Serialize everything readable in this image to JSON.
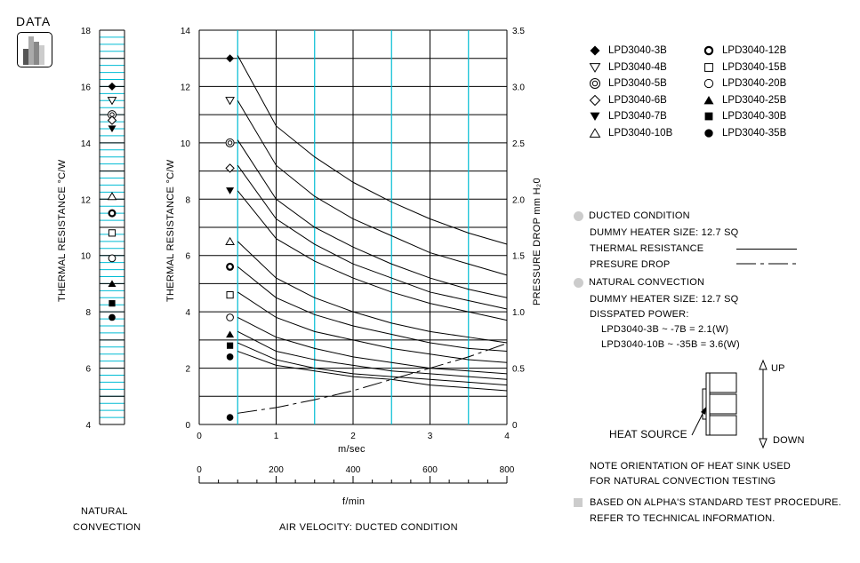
{
  "header": {
    "label": "DATA"
  },
  "natural_chart": {
    "ylabel": "THERMAL RESISTANCE  °C/W",
    "caption_line1": "NATURAL",
    "caption_line2": "CONVECTION",
    "ylim": [
      4,
      18
    ],
    "yticks": [
      "4",
      "6",
      "8",
      "10",
      "12",
      "14",
      "16",
      "18"
    ]
  },
  "chart_data": {
    "type": "line",
    "xlabel": "m/sec",
    "xlabel2": "f/min",
    "ylabel": "THERMAL RESISTANCE  °C/W",
    "ylabel_right": "PRESSURE  DROP   mm H₂0",
    "caption": "AIR VELOCITY:  DUCTED CONDITION",
    "xlim": [
      0,
      4
    ],
    "ylim": [
      0,
      14
    ],
    "ylim_right": [
      0,
      3.5
    ],
    "xticks": [
      "0",
      "1",
      "2",
      "3",
      "4"
    ],
    "xticks2": [
      "0",
      "200",
      "400",
      "600",
      "800"
    ],
    "yticks": [
      "0",
      "2",
      "4",
      "6",
      "8",
      "10",
      "12",
      "14"
    ],
    "yticks_right": [
      "0",
      "0.5",
      "1.0",
      "1.5",
      "2.0",
      "2.5",
      "3.0",
      "3.5"
    ],
    "x": [
      0.5,
      1,
      1.5,
      2,
      2.5,
      3,
      3.5,
      4
    ],
    "series": [
      {
        "name": "LPD3040-3B",
        "marker": "diamond-filled",
        "natural": 16.0,
        "start": 13.0,
        "values": [
          13.1,
          10.6,
          9.5,
          8.6,
          7.9,
          7.3,
          6.8,
          6.4
        ]
      },
      {
        "name": "LPD3040-4B",
        "marker": "triangle-down-open",
        "natural": 15.5,
        "start": 11.5,
        "values": [
          11.5,
          9.2,
          8.1,
          7.3,
          6.7,
          6.1,
          5.7,
          5.3
        ]
      },
      {
        "name": "LPD3040-5B",
        "marker": "double-circle",
        "natural": 15.0,
        "start": 10.0,
        "values": [
          10.1,
          8.0,
          7.0,
          6.3,
          5.7,
          5.2,
          4.8,
          4.5
        ]
      },
      {
        "name": "LPD3040-6B",
        "marker": "diamond-open",
        "natural": 14.8,
        "start": 9.1,
        "values": [
          9.2,
          7.3,
          6.4,
          5.7,
          5.2,
          4.7,
          4.4,
          4.1
        ]
      },
      {
        "name": "LPD3040-7B",
        "marker": "triangle-down-filled",
        "natural": 14.5,
        "start": 8.3,
        "values": [
          8.3,
          6.6,
          5.8,
          5.2,
          4.7,
          4.3,
          4.0,
          3.7
        ]
      },
      {
        "name": "LPD3040-10B",
        "marker": "triangle-up-open",
        "natural": 12.1,
        "start": 6.5,
        "values": [
          6.5,
          5.2,
          4.5,
          4.0,
          3.6,
          3.3,
          3.1,
          2.9
        ]
      },
      {
        "name": "LPD3040-12B",
        "marker": "bold-circle",
        "natural": 11.5,
        "start": 5.6,
        "values": [
          5.6,
          4.5,
          3.9,
          3.5,
          3.2,
          2.9,
          2.7,
          2.6
        ]
      },
      {
        "name": "LPD3040-15B",
        "marker": "square-open",
        "natural": 10.8,
        "start": 4.6,
        "values": [
          4.7,
          3.8,
          3.3,
          3.0,
          2.7,
          2.5,
          2.3,
          2.2
        ]
      },
      {
        "name": "LPD3040-20B",
        "marker": "circle-open",
        "natural": 9.9,
        "start": 3.8,
        "values": [
          3.8,
          3.1,
          2.7,
          2.4,
          2.2,
          2.0,
          1.9,
          1.8
        ]
      },
      {
        "name": "LPD3040-25B",
        "marker": "triangle-up-filled",
        "natural": 9.0,
        "start": 3.2,
        "values": [
          3.3,
          2.6,
          2.3,
          2.1,
          1.9,
          1.8,
          1.7,
          1.6
        ]
      },
      {
        "name": "LPD3040-30B",
        "marker": "square-filled",
        "natural": 8.3,
        "start": 2.8,
        "values": [
          2.9,
          2.3,
          2.0,
          1.8,
          1.7,
          1.6,
          1.5,
          1.4
        ]
      },
      {
        "name": "LPD3040-35B",
        "marker": "circle-filled",
        "natural": 7.8,
        "start": 2.4,
        "values": [
          2.6,
          2.1,
          1.9,
          1.7,
          1.6,
          1.4,
          1.3,
          1.2
        ]
      }
    ],
    "pressure_drop": {
      "marker_y": 0.25,
      "x": [
        0.5,
        1,
        1.5,
        2,
        2.5,
        3,
        3.5,
        4
      ],
      "values": [
        0.1,
        0.15,
        0.22,
        0.3,
        0.4,
        0.5,
        0.6,
        0.72
      ]
    }
  },
  "legend": {
    "col1": [
      "LPD3040-3B",
      "LPD3040-4B",
      "LPD3040-5B",
      "LPD3040-6B",
      "LPD3040-7B",
      "LPD3040-10B"
    ],
    "col2": [
      "LPD3040-12B",
      "LPD3040-15B",
      "LPD3040-20B",
      "LPD3040-25B",
      "LPD3040-30B",
      "LPD3040-35B"
    ]
  },
  "notes": {
    "ducted_title": "DUCTED CONDITION",
    "dummy_heater1": "DUMMY HEATER SIZE: 12.7 SQ",
    "thermal_resistance": "THERMAL RESISTANCE",
    "pressure_drop": "PRESURE DROP",
    "natural_title": "NATURAL CONVECTION",
    "dummy_heater2": "DUMMY HEATER SIZE: 12.7 SQ",
    "dissipated": "DISSPATED POWER:",
    "power1": "LPD3040-3B  ~ -7B    = 2.1(W)",
    "power2": "LPD3040-10B ~ -35B = 3.6(W)",
    "up": "UP",
    "down": "DOWN",
    "heat_source": "HEAT SOURCE",
    "orientation1": "NOTE ORIENTATION OF HEAT SINK USED",
    "orientation2": "FOR NATURAL CONVECTION TESTING",
    "based1": "BASED ON ALPHA'S STANDARD TEST PROCEDURE.",
    "based2": "REFER TO TECHNICAL INFORMATION."
  },
  "colors": {
    "grid_cyan": "#00bcd4",
    "ink": "#000000",
    "bullet_gray": "#cccccc"
  }
}
